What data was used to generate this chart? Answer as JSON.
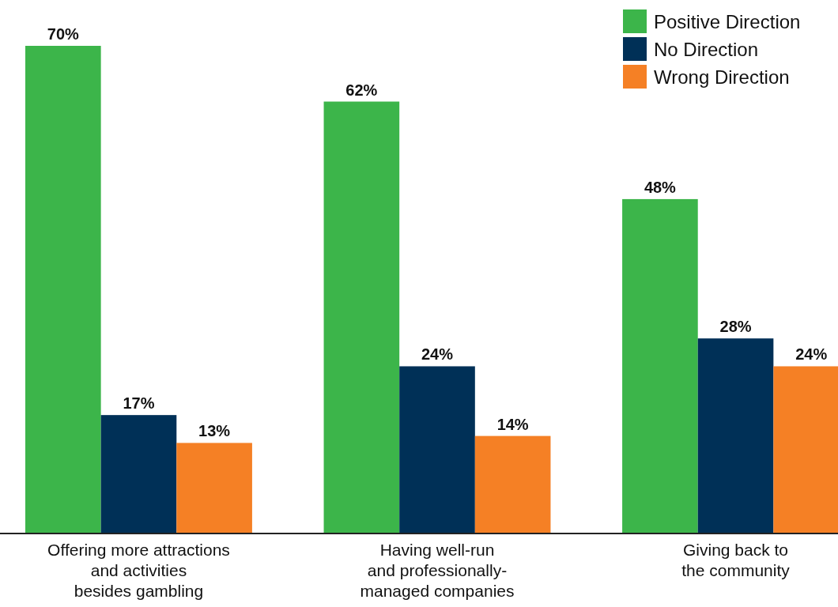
{
  "chart_data": {
    "type": "bar",
    "categories": [
      "Offering more attractions\nand activities\nbesides gambling",
      "Having well-run\nand professionally-\nmanaged companies",
      "Giving back to\nthe community"
    ],
    "series": [
      {
        "name": "Positive Direction",
        "color": "#3cb54a",
        "values": [
          70,
          62,
          48
        ],
        "value_labels": [
          "70%",
          "62%",
          "48%"
        ]
      },
      {
        "name": "No Direction",
        "color": "#003057",
        "values": [
          17,
          24,
          28
        ],
        "value_labels": [
          "17%",
          "24%",
          "28%"
        ]
      },
      {
        "name": "Wrong Direction",
        "color": "#f58025",
        "values": [
          13,
          14,
          24
        ],
        "value_labels": [
          "13%",
          "14%",
          "24%"
        ]
      }
    ],
    "legend": "top right"
  }
}
